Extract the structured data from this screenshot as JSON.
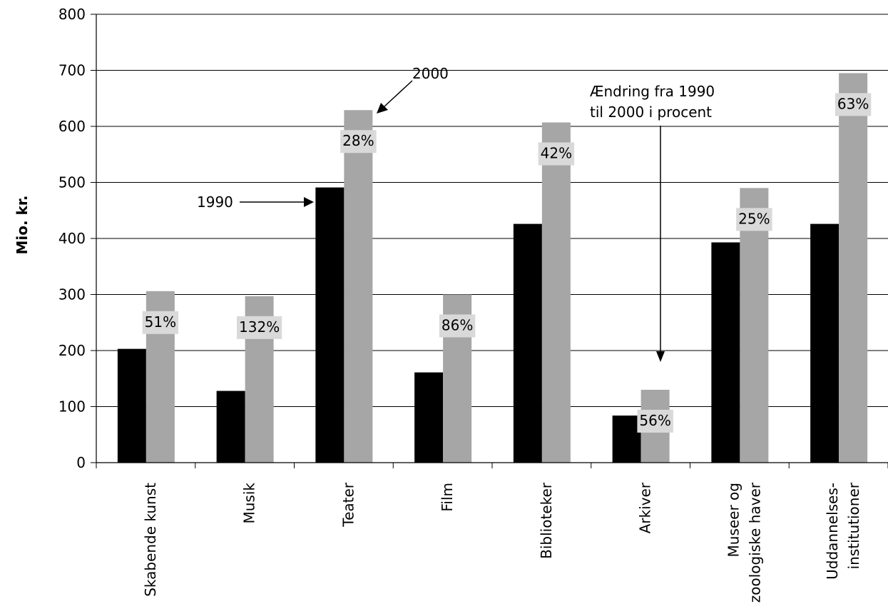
{
  "chart_data": {
    "type": "bar",
    "ylabel": "Mio. kr.",
    "ylim": [
      0,
      800
    ],
    "yticks": [
      0,
      100,
      200,
      300,
      400,
      500,
      600,
      700,
      800
    ],
    "grid": true,
    "categories": [
      [
        "Skabende kunst"
      ],
      [
        "Musik"
      ],
      [
        "Teater"
      ],
      [
        "Film"
      ],
      [
        "Biblioteker"
      ],
      [
        "Arkiver"
      ],
      [
        "Museer og",
        "zoologiske haver"
      ],
      [
        "Uddannelses-",
        "institutioner"
      ]
    ],
    "series": [
      {
        "name": "1990",
        "color": "#000000",
        "values": [
          203,
          128,
          491,
          161,
          426,
          84,
          393,
          426
        ]
      },
      {
        "name": "2000",
        "color": "#a6a6a6",
        "values": [
          306,
          297,
          629,
          300,
          607,
          130,
          490,
          695
        ]
      }
    ],
    "change_labels": [
      "51%",
      "132%",
      "28%",
      "86%",
      "42%",
      "56%",
      "25%",
      "63%"
    ],
    "annotations": {
      "label_1990": "1990",
      "label_2000": "2000",
      "change_note_line1": "Ændring fra 1990",
      "change_note_line2": "til 2000 i procent"
    }
  }
}
